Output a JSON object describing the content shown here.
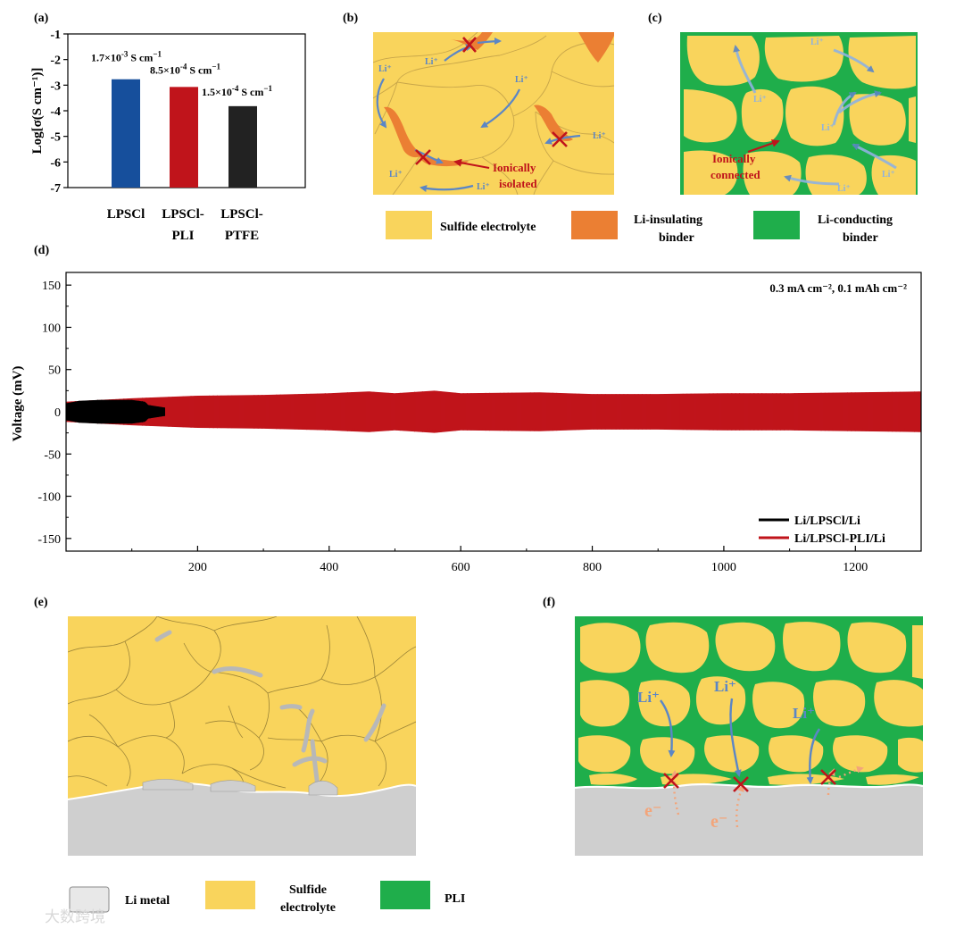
{
  "panel_labels": {
    "a": "(a)",
    "b": "(b)",
    "c": "(c)",
    "d": "(d)",
    "e": "(e)",
    "f": "(f)"
  },
  "colors": {
    "electrolyte": "#F9D45C",
    "electrolyte_border": "#B79A3C",
    "insulating_binder": "#EB7F33",
    "conducting_binder": "#1FAE4B",
    "li_metal": "#CFCFCF",
    "bar_lpscl": "#164F9C",
    "bar_pli": "#C0141B",
    "bar_ptfe": "#222222",
    "arrow_blue": "#5B86C6",
    "cross_red": "#C0141B",
    "electron_orange": "#F3A57A"
  },
  "panel_b": {
    "li_label": "Li⁺",
    "annotation": [
      "Ionically",
      "isolated"
    ]
  },
  "panel_c": {
    "li_label": "Li⁺",
    "annotation": [
      "Ionically",
      "connected"
    ]
  },
  "legend_bc": {
    "sulfide": "Sulfide electrolyte",
    "insulating": [
      "Li-insulating",
      "binder"
    ],
    "conducting": [
      "Li-conducting",
      "binder"
    ]
  },
  "panel_e": {},
  "panel_f": {
    "li_label": "Li⁺",
    "electron_label": "e⁻"
  },
  "legend_ef": {
    "li_metal": "Li metal",
    "sulfide": [
      "Sulfide",
      "electrolyte"
    ],
    "pli": "PLI"
  },
  "watermark": "大数跨境",
  "chart_data": [
    {
      "type": "bar",
      "panel": "a",
      "categories": [
        [
          "LPSCl"
        ],
        [
          "LPSCl-",
          "PLI"
        ],
        [
          "LPSCl-",
          "PTFE"
        ]
      ],
      "values": [
        -2.77,
        -3.07,
        -3.82
      ],
      "data_labels": [
        {
          "mantissa": "1.7×10",
          "exp": "-3",
          "unit": " S cm",
          "unit_exp": "−1"
        },
        {
          "mantissa": "8.5×10",
          "exp": "-4",
          "unit": " S cm",
          "unit_exp": "−1"
        },
        {
          "mantissa": "1.5×10",
          "exp": "-4",
          "unit": " S cm",
          "unit_exp": "−1"
        }
      ],
      "ylabel": "Log[σ(S cm⁻¹)]",
      "ylim": [
        -7,
        -1
      ],
      "yticks": [
        -1,
        -2,
        -3,
        -4,
        -5,
        -6,
        -7
      ]
    },
    {
      "type": "line",
      "panel": "d",
      "ylabel": "Voltage (mV)",
      "xlabel": "",
      "xlim": [
        0,
        1300
      ],
      "ylim": [
        -165,
        165
      ],
      "xticks": [
        200,
        400,
        600,
        800,
        1000,
        1200
      ],
      "yticks": [
        150,
        100,
        50,
        0,
        -50,
        -100,
        -150
      ],
      "annotation": "0.3 mA cm⁻², 0.1 mAh cm⁻²",
      "legend_position": "bottom-right",
      "series": [
        {
          "name": "Li/LPSCl/Li",
          "color": "#000000",
          "x_range": [
            0,
            150
          ],
          "envelope": [
            [
              0,
              10
            ],
            [
              20,
              13
            ],
            [
              50,
              14
            ],
            [
              80,
              14
            ],
            [
              100,
              14
            ],
            [
              120,
              12
            ],
            [
              125,
              8
            ],
            [
              150,
              5
            ]
          ]
        },
        {
          "name": "Li/LPSCl-PLI/Li",
          "color": "#C0141B",
          "x_range": [
            0,
            1300
          ],
          "envelope": [
            [
              0,
              12
            ],
            [
              100,
              16
            ],
            [
              200,
              19
            ],
            [
              300,
              20
            ],
            [
              400,
              22
            ],
            [
              460,
              24
            ],
            [
              500,
              22
            ],
            [
              560,
              25
            ],
            [
              600,
              22
            ],
            [
              720,
              23
            ],
            [
              800,
              21
            ],
            [
              900,
              21
            ],
            [
              1000,
              22
            ],
            [
              1100,
              22
            ],
            [
              1200,
              23
            ],
            [
              1300,
              24
            ]
          ]
        }
      ]
    }
  ]
}
